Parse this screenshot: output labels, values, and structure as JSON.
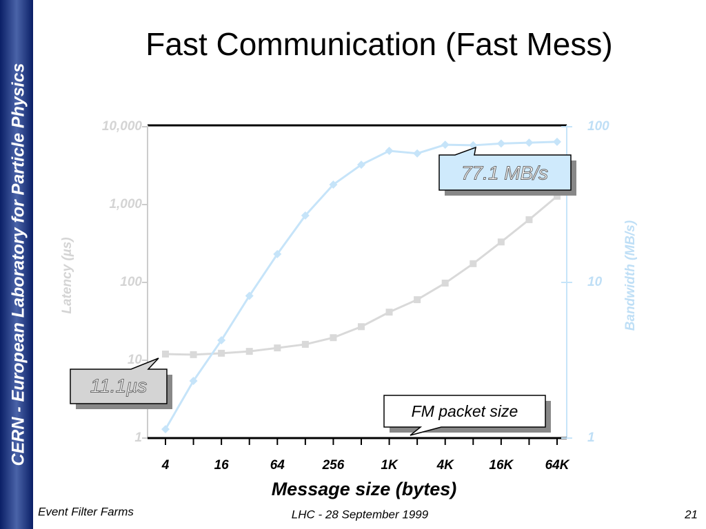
{
  "slide": {
    "sidebar": "CERN - European Laboratory for Particle Physics",
    "footer_left": "Event Filter Farms",
    "footer_center": "LHC - 28 September 1999",
    "page": "21"
  },
  "chart_data": {
    "type": "line",
    "title": "Fast Communication (Fast Mess)",
    "xlabel": "Message size (bytes)",
    "ylabel": "Latency (µs)",
    "y2label": "Bandwidth (MB/s)",
    "categories": [
      "4",
      null,
      "16",
      null,
      "64",
      null,
      "256",
      null,
      "1K",
      null,
      "4K",
      null,
      "16K",
      null,
      "64K"
    ],
    "series": [
      {
        "name": "Latency",
        "color": "#d9d9d9",
        "axis": "y",
        "values": [
          12,
          11.8,
          12.3,
          13,
          14.4,
          16,
          19.5,
          27,
          41.5,
          60,
          98,
          174,
          331,
          640,
          1280
        ]
      },
      {
        "name": "Bandwidth",
        "color": "#c6e4f9",
        "axis": "y2",
        "values": [
          1.14,
          2.33,
          4.25,
          8.2,
          15.2,
          26.9,
          42.5,
          57,
          70,
          67.4,
          76.6,
          76,
          78,
          79,
          80
        ]
      }
    ],
    "ylim": [
      1,
      10000
    ],
    "yticks": [
      1,
      10,
      100,
      {
        "value": 1000,
        "label": "1,000"
      },
      {
        "value": 10000,
        "label": "10,000"
      }
    ],
    "ylog": true,
    "y2lim": [
      1,
      100
    ],
    "y2ticks": [
      1,
      10,
      100
    ],
    "y2log": true,
    "grid": false,
    "annotations": [
      "77.1 MB/s",
      "11.1µs",
      "FM packet size"
    ]
  }
}
